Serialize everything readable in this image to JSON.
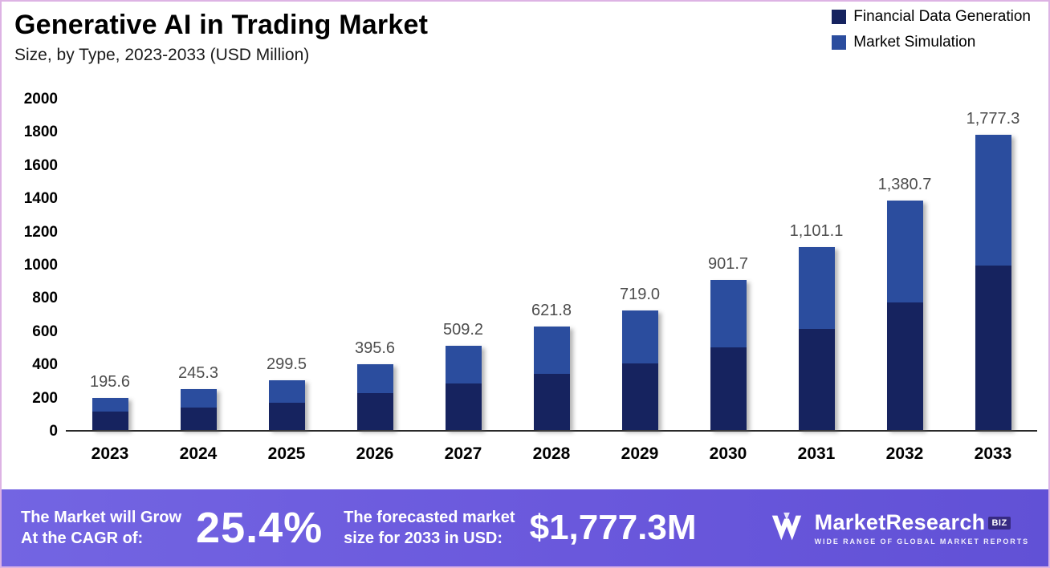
{
  "title": "Generative AI in Trading Market",
  "subtitle": "Size, by Type, 2023-2033 (USD Million)",
  "chart_data": {
    "type": "bar",
    "stacked": true,
    "title": "Generative AI in Trading Market Size, by Type, 2023-2033 (USD Million)",
    "categories": [
      "2023",
      "2024",
      "2025",
      "2026",
      "2027",
      "2028",
      "2029",
      "2030",
      "2031",
      "2032",
      "2033"
    ],
    "series": [
      {
        "name": "Financial Data Generation",
        "color": "#16235f",
        "values": [
          110,
          135,
          165,
          220,
          280,
          340,
          400,
          500,
          610,
          770,
          990
        ]
      },
      {
        "name": "Market Simulation",
        "color": "#2b4d9e",
        "values": [
          85.6,
          110.3,
          134.5,
          175.6,
          229.2,
          281.8,
          319.0,
          401.7,
          491.1,
          610.7,
          787.3
        ]
      }
    ],
    "totals": [
      195.6,
      245.3,
      299.5,
      395.6,
      509.2,
      621.8,
      719.0,
      901.7,
      1101.1,
      1380.7,
      1777.3
    ],
    "total_labels": [
      "195.6",
      "245.3",
      "299.5",
      "395.6",
      "509.2",
      "621.8",
      "719.0",
      "901.7",
      "1,101.1",
      "1,380.7",
      "1,777.3"
    ],
    "ylim": [
      0,
      2000
    ],
    "yticks": [
      0,
      200,
      400,
      600,
      800,
      1000,
      1200,
      1400,
      1600,
      1800,
      2000
    ],
    "grid": false,
    "legend_position": "top-right"
  },
  "banner": {
    "cagr_label_line1": "The Market will Grow",
    "cagr_label_line2": "At the CAGR of:",
    "cagr_value": "25.4%",
    "forecast_label_line1": "The forecasted market",
    "forecast_label_line2": "size for 2033 in USD:",
    "forecast_value": "$1,777.3M",
    "logo": {
      "name": "MarketResearch",
      "suffix": "BIZ",
      "tagline": "WIDE RANGE OF GLOBAL MARKET REPORTS"
    }
  }
}
